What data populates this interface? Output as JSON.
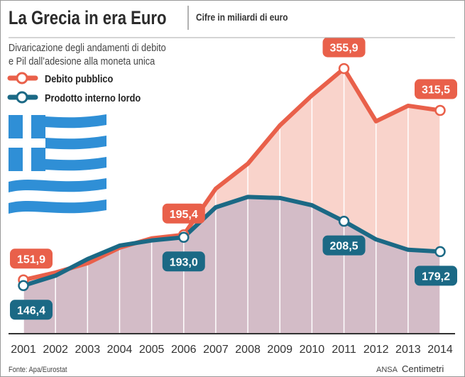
{
  "header": {
    "title": "La Grecia in era Euro",
    "subtitle": "Cifre in miliardi di euro",
    "description_line1": "Divaricazione degli andamenti di debito",
    "description_line2": "e Pil dall’adesione alla moneta unica"
  },
  "footer": {
    "source": "Fonte: Apa/Eurostat",
    "credit_agency": "ANSA",
    "credit_brand": "Centimetri"
  },
  "decoration": {
    "icon": "greece-flag-icon",
    "flag_blue": "#2f8fd6"
  },
  "chart_data": {
    "type": "area",
    "title": "La Grecia in era Euro",
    "subtitle": "Cifre in miliardi di euro",
    "xlabel": "",
    "ylabel": "",
    "ylim": [
      100,
      370
    ],
    "grid": "vertical",
    "legend_placement": "top-left",
    "categories": [
      "2001",
      "2002",
      "2003",
      "2004",
      "2005",
      "2006",
      "2007",
      "2008",
      "2009",
      "2010",
      "2011",
      "2012",
      "2013",
      "2014"
    ],
    "series": [
      {
        "name": "Debito pubblico",
        "color": "#e9604a",
        "fill": "#f9d3cb",
        "values": [
          151.9,
          159,
          168,
          183,
          192,
          195.4,
          240,
          264,
          301,
          330,
          355.9,
          305,
          320,
          315.5
        ]
      },
      {
        "name": "Prodotto interno lordo",
        "color": "#1b6985",
        "fill": "#d3bcc7",
        "values": [
          146.4,
          156,
          172,
          185,
          190,
          193.0,
          222,
          232,
          231,
          224,
          208.5,
          191,
          181,
          179.2
        ]
      }
    ],
    "annotations": [
      {
        "series": 0,
        "year": "2001",
        "text": "151,9"
      },
      {
        "series": 1,
        "year": "2001",
        "text": "146,4"
      },
      {
        "series": 0,
        "year": "2006",
        "text": "195,4"
      },
      {
        "series": 1,
        "year": "2006",
        "text": "193,0"
      },
      {
        "series": 0,
        "year": "2011",
        "text": "355,9"
      },
      {
        "series": 1,
        "year": "2011",
        "text": "208,5"
      },
      {
        "series": 0,
        "year": "2014",
        "text": "315,5"
      },
      {
        "series": 1,
        "year": "2014",
        "text": "179,2"
      }
    ]
  }
}
